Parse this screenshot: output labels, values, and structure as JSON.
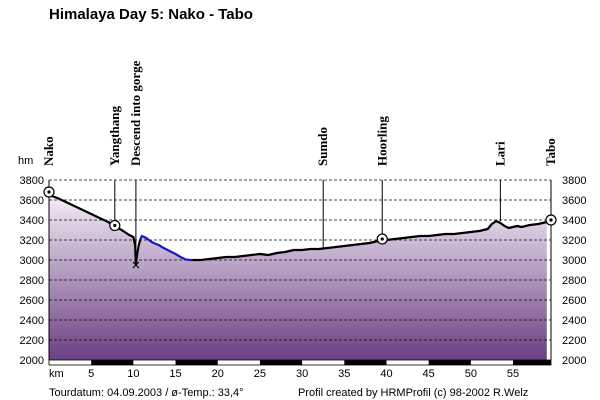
{
  "chart_data": {
    "type": "area",
    "title": "Himalaya Day 5: Nako - Tabo",
    "ylabel": "hm",
    "xlabel": "km",
    "xlim": [
      0,
      59.5
    ],
    "ylim": [
      2000,
      3800
    ],
    "x_ticks": [
      5,
      10,
      15,
      20,
      25,
      30,
      35,
      40,
      45,
      50,
      55
    ],
    "y_ticks": [
      2000,
      2200,
      2400,
      2600,
      2800,
      3000,
      3200,
      3400,
      3600,
      3800
    ],
    "grid": true,
    "profile": {
      "x": [
        0,
        1,
        2,
        3,
        4,
        5,
        6,
        7,
        7.6,
        8.2,
        8.8,
        9.5,
        10,
        10.2,
        10.3,
        10.45,
        10.6,
        10.8,
        11,
        11.3,
        11.7,
        12,
        12.4,
        13,
        13.6,
        14.3,
        15,
        15.6,
        16.2,
        16.7,
        17,
        17.4,
        18,
        19,
        20,
        21,
        22,
        23,
        24,
        25,
        26,
        27,
        28,
        29,
        30,
        31,
        32,
        33,
        34,
        35,
        36,
        37,
        38,
        38.5,
        39,
        39.5,
        40,
        41,
        42,
        43,
        44,
        45,
        46,
        47,
        48,
        49,
        50,
        51,
        52,
        52.5,
        53,
        53.5,
        54,
        54.5,
        55,
        55.5,
        56,
        57,
        58,
        59
      ],
      "y": [
        3650,
        3620,
        3580,
        3540,
        3500,
        3460,
        3420,
        3380,
        3350,
        3320,
        3290,
        3250,
        3230,
        3150,
        2960,
        3060,
        3130,
        3200,
        3240,
        3230,
        3210,
        3190,
        3170,
        3150,
        3120,
        3090,
        3060,
        3030,
        3005,
        3000,
        3000,
        3000,
        3000,
        3010,
        3020,
        3030,
        3030,
        3040,
        3050,
        3060,
        3050,
        3070,
        3080,
        3100,
        3100,
        3110,
        3110,
        3120,
        3130,
        3140,
        3150,
        3160,
        3170,
        3180,
        3190,
        3190,
        3200,
        3210,
        3220,
        3230,
        3240,
        3240,
        3250,
        3260,
        3260,
        3270,
        3280,
        3290,
        3310,
        3360,
        3390,
        3370,
        3340,
        3320,
        3330,
        3340,
        3330,
        3350,
        3360,
        3380
      ],
      "highlight_range": [
        10.8,
        16.7
      ],
      "line_color": "#000000",
      "highlight_color": "#1818c8"
    },
    "waypoints": [
      {
        "label": "Nako",
        "x": 0,
        "y": 3680
      },
      {
        "label": "Yangthang",
        "x": 7.8,
        "y": 3345
      },
      {
        "label": "Descend into gorge",
        "x": 10.3,
        "y": 2950
      },
      {
        "label": "Sumdo",
        "x": 32.5,
        "y": 3110
      },
      {
        "label": "Hoorling",
        "x": 39.5,
        "y": 3210
      },
      {
        "label": "Lari",
        "x": 53.5,
        "y": 3390
      },
      {
        "label": "Tabo",
        "x": 59.5,
        "y": 3400
      }
    ],
    "marked_points": [
      0,
      7.8,
      39.5,
      59.5
    ],
    "colors": {
      "fill_top": "#f4eef6",
      "fill_bottom": "#6a3f83",
      "grid": "#000000"
    }
  },
  "footer": {
    "date": "Tourdatum: 04.09.2003  /  ø-Temp.: 33,4°",
    "credit": "Profil created by HRMProfil (c) 98-2002 R.Welz"
  }
}
